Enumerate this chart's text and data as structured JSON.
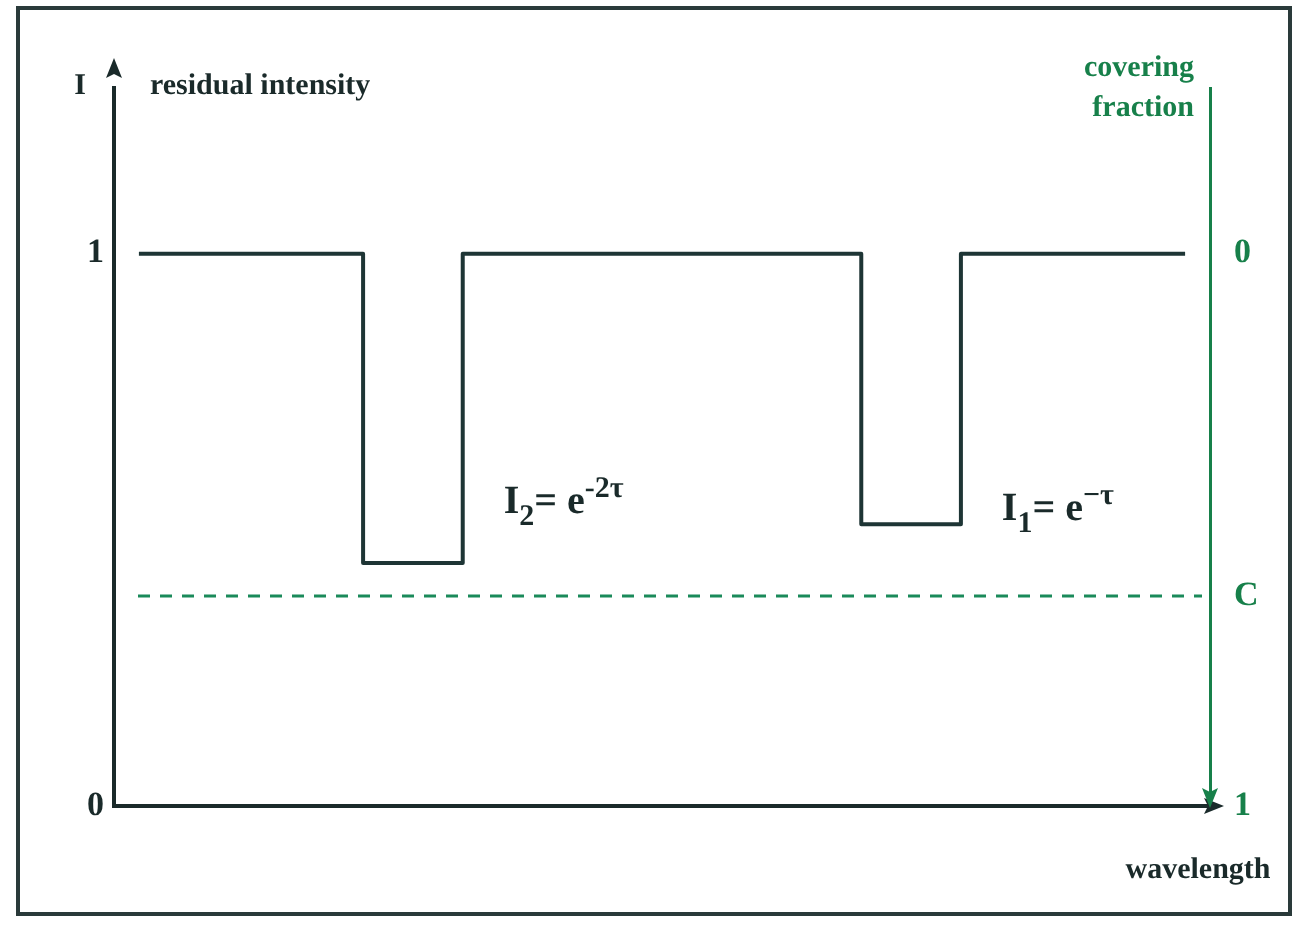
{
  "chart_data": {
    "type": "step",
    "xlabel": "wavelength",
    "ylabel": "I",
    "y2label": "covering fraction",
    "annotations": [
      "residual intensity",
      "I$_{2}$= e$^{-2τ}$",
      "I$_{1}$= e$^{−τ}$"
    ],
    "categories": [
      null,
      null,
      null,
      null,
      null,
      null,
      null,
      null,
      null,
      null,
      null,
      null,
      null,
      null,
      null,
      null,
      null,
      null,
      null,
      null,
      null,
      null
    ],
    "ylim": [
      0,
      1.3
    ],
    "yticks": [
      0,
      1
    ],
    "y2lim": [
      1,
      -0.3
    ],
    "y2ticks": [
      1,
      0,
      {
        "value": 0.62,
        "label": "C"
      }
    ],
    "grid": false,
    "legend": false,
    "marker": "none",
    "line_style": "solid",
    "ref_lines": [
      {
        "axis": "y2",
        "value": 0.62,
        "label": null,
        "color": "#1a8a5a",
        "line_style": "dashed"
      }
    ],
    "series": [
      {
        "color": "#1e3535",
        "values": [
          1,
          1,
          1,
          1,
          1,
          0.44,
          0.44,
          1,
          1,
          1,
          1,
          1,
          1,
          1,
          1,
          0.51,
          0.51,
          1,
          1,
          1,
          1,
          1
        ]
      }
    ]
  }
}
